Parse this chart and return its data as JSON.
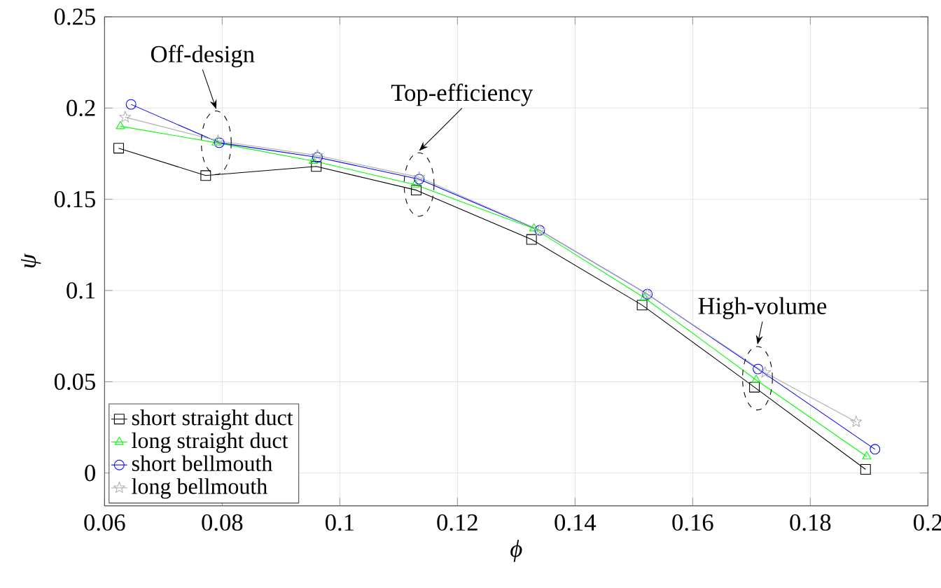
{
  "chart_data": {
    "type": "line",
    "xlabel": "ϕ",
    "ylabel": "ψ",
    "xlim": [
      0.06,
      0.2
    ],
    "ylim": [
      -0.018,
      0.25
    ],
    "xticks": [
      0.06,
      0.08,
      0.1,
      0.12,
      0.14,
      0.16,
      0.18,
      0.2
    ],
    "yticks": [
      0,
      0.05,
      0.1,
      0.15,
      0.2,
      0.25
    ],
    "grid": true,
    "legend": "bottom left",
    "series": [
      {
        "name": "short straight duct",
        "color": "#000000",
        "marker": "square",
        "x": [
          0.0624,
          0.0772,
          0.096,
          0.113,
          0.1326,
          0.1514,
          0.1705,
          0.1894
        ],
        "values": [
          0.178,
          0.163,
          0.168,
          0.155,
          0.128,
          0.092,
          0.047,
          0.002
        ]
      },
      {
        "name": "long straight duct",
        "color": "#00ff00",
        "marker": "triangle",
        "x": [
          0.0627,
          0.079,
          0.0955,
          0.1128,
          0.133,
          0.1518,
          0.1708,
          0.1896
        ],
        "values": [
          0.19,
          0.181,
          0.171,
          0.158,
          0.134,
          0.096,
          0.051,
          0.009
        ]
      },
      {
        "name": "short bellmouth",
        "color": "#0000ff",
        "marker": "circle",
        "x": [
          0.0645,
          0.0795,
          0.0962,
          0.1135,
          0.134,
          0.1523,
          0.1711,
          0.191
        ],
        "values": [
          0.202,
          0.181,
          0.173,
          0.161,
          0.133,
          0.098,
          0.057,
          0.013
        ]
      },
      {
        "name": "long bellmouth",
        "color": "#b0b0b0",
        "marker": "star",
        "x": [
          0.0635,
          0.0793,
          0.0962,
          0.1135,
          0.134,
          0.1523,
          0.1723,
          0.1878
        ],
        "values": [
          0.195,
          0.182,
          0.174,
          0.162,
          0.133,
          0.098,
          0.055,
          0.028
        ]
      }
    ],
    "annotations": [
      "Off-design",
      "Top-efficiency",
      "High-volume"
    ]
  }
}
